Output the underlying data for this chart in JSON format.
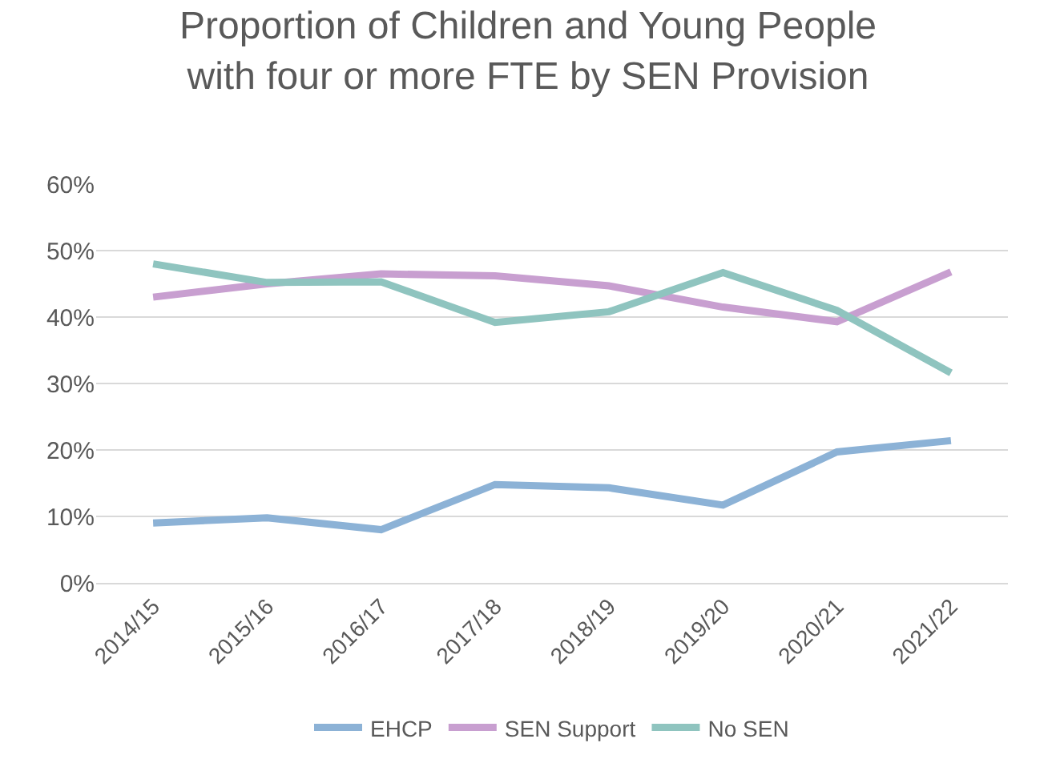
{
  "chart_data": {
    "type": "line",
    "title": "Proportion of Children and Young People\nwith four or more FTE by SEN Provision",
    "categories": [
      "2014/15",
      "2015/16",
      "2016/17",
      "2017/18",
      "2018/19",
      "2019/20",
      "2020/21",
      "2021/22"
    ],
    "series": [
      {
        "name": "EHCP",
        "color": "#8cb2d6",
        "values": [
          9.0,
          9.8,
          8.0,
          14.8,
          14.3,
          11.7,
          19.7,
          21.4
        ]
      },
      {
        "name": "SEN Support",
        "color": "#c89fd0",
        "values": [
          43.0,
          45.0,
          46.5,
          46.2,
          44.7,
          41.5,
          39.3,
          46.8
        ]
      },
      {
        "name": "No SEN",
        "color": "#8fc4bf",
        "values": [
          48.0,
          45.2,
          45.3,
          39.2,
          40.8,
          46.7,
          41.0,
          31.6
        ]
      }
    ],
    "ylim": [
      0,
      60
    ],
    "yticks": [
      {
        "value": 0,
        "label": "0%"
      },
      {
        "value": 10,
        "label": "10%"
      },
      {
        "value": 20,
        "label": "20%"
      },
      {
        "value": 30,
        "label": "30%"
      },
      {
        "value": 40,
        "label": "40%"
      },
      {
        "value": 50,
        "label": "50%"
      },
      {
        "value": 60,
        "label": "60%"
      }
    ],
    "grid": "y",
    "legend": "bottom",
    "marker": "none",
    "line_style": "solid"
  }
}
